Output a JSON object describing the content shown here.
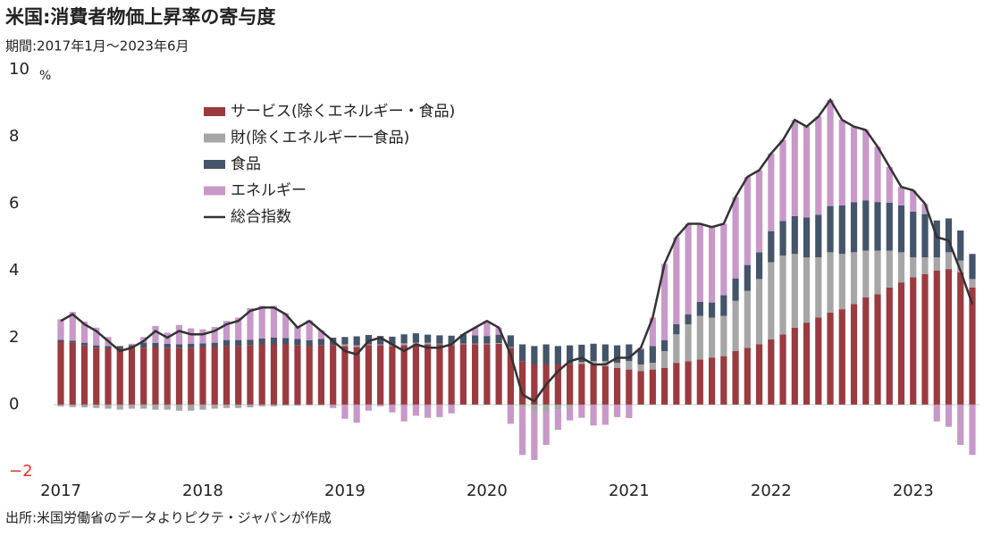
{
  "chart_data": {
    "type": "bar",
    "stacked": true,
    "title": "米国:消費者物価上昇率の寄与度",
    "subtitle": "期間:2017年1月～2023年6月",
    "source": "出所:米国労働省のデータよりピクテ・ジャパンが作成",
    "y_unit": "%",
    "categories": [
      "2017",
      null,
      null,
      null,
      null,
      null,
      null,
      null,
      null,
      null,
      null,
      null,
      "2018",
      null,
      null,
      null,
      null,
      null,
      null,
      null,
      null,
      null,
      null,
      null,
      "2019",
      null,
      null,
      null,
      null,
      null,
      null,
      null,
      null,
      null,
      null,
      null,
      "2020",
      null,
      null,
      null,
      null,
      null,
      null,
      null,
      null,
      null,
      null,
      null,
      "2021",
      null,
      null,
      null,
      null,
      null,
      null,
      null,
      null,
      null,
      null,
      null,
      "2022",
      null,
      null,
      null,
      null,
      null,
      null,
      null,
      null,
      null,
      null,
      null,
      "2023",
      null,
      null,
      null,
      null,
      null
    ],
    "ylim": [
      -2,
      10
    ],
    "yticks": [
      {
        "value": -2,
        "label": "−2"
      },
      0,
      2,
      4,
      6,
      8,
      10
    ],
    "negative_tick_color": "#e8302a",
    "series": [
      {
        "name": "サービス(除くエネルギー・食品)",
        "color": "#9b3a3f",
        "values": [
          1.88,
          1.85,
          1.78,
          1.7,
          1.68,
          1.68,
          1.7,
          1.7,
          1.72,
          1.7,
          1.7,
          1.7,
          1.72,
          1.72,
          1.75,
          1.75,
          1.78,
          1.8,
          1.8,
          1.8,
          1.78,
          1.76,
          1.78,
          1.78,
          1.75,
          1.72,
          1.78,
          1.78,
          1.75,
          1.78,
          1.8,
          1.8,
          1.8,
          1.78,
          1.8,
          1.8,
          1.8,
          1.82,
          1.7,
          1.3,
          1.2,
          1.2,
          1.2,
          1.22,
          1.22,
          1.2,
          1.15,
          1.1,
          1.05,
          1.0,
          1.05,
          1.1,
          1.25,
          1.3,
          1.35,
          1.4,
          1.45,
          1.6,
          1.7,
          1.8,
          1.95,
          2.1,
          2.3,
          2.45,
          2.6,
          2.75,
          2.85,
          3.0,
          3.2,
          3.3,
          3.5,
          3.65,
          3.8,
          3.9,
          4.0,
          4.05,
          3.95,
          3.5
        ]
      },
      {
        "name": "財(除くエネルギー一食品)",
        "color": "#a6a6a6",
        "values": [
          -0.05,
          -0.07,
          -0.08,
          -0.1,
          -0.12,
          -0.12,
          -0.12,
          -0.12,
          -0.15,
          -0.15,
          -0.18,
          -0.18,
          -0.15,
          -0.12,
          -0.1,
          -0.1,
          -0.08,
          -0.05,
          -0.05,
          -0.03,
          -0.03,
          -0.02,
          -0.02,
          0.0,
          0.05,
          0.05,
          0.02,
          0.02,
          0.02,
          0.05,
          0.05,
          0.05,
          0.02,
          0.02,
          0.02,
          0.02,
          0.02,
          0.02,
          0.02,
          -0.1,
          -0.2,
          -0.2,
          -0.15,
          -0.1,
          0.05,
          0.1,
          0.15,
          0.15,
          0.25,
          0.2,
          0.2,
          0.5,
          0.85,
          1.1,
          1.3,
          1.2,
          1.2,
          1.5,
          1.7,
          1.95,
          2.3,
          2.35,
          2.2,
          1.95,
          1.8,
          1.8,
          1.65,
          1.55,
          1.4,
          1.3,
          1.1,
          0.9,
          0.6,
          0.5,
          0.4,
          0.5,
          0.35,
          0.25
        ]
      },
      {
        "name": "食品",
        "color": "#44546a",
        "values": [
          0.06,
          0.06,
          0.07,
          0.07,
          0.07,
          0.07,
          0.08,
          0.15,
          0.12,
          0.12,
          0.1,
          0.12,
          0.11,
          0.13,
          0.18,
          0.18,
          0.16,
          0.18,
          0.2,
          0.19,
          0.18,
          0.16,
          0.18,
          0.22,
          0.22,
          0.27,
          0.28,
          0.25,
          0.26,
          0.27,
          0.28,
          0.24,
          0.25,
          0.26,
          0.28,
          0.25,
          0.23,
          0.25,
          0.35,
          0.5,
          0.55,
          0.6,
          0.55,
          0.55,
          0.52,
          0.52,
          0.5,
          0.52,
          0.5,
          0.45,
          0.5,
          0.32,
          0.3,
          0.3,
          0.42,
          0.45,
          0.62,
          0.67,
          0.77,
          0.8,
          0.93,
          1.03,
          1.13,
          1.19,
          1.27,
          1.38,
          1.45,
          1.49,
          1.5,
          1.45,
          1.43,
          1.4,
          1.36,
          1.29,
          1.1,
          1.01,
          0.9,
          0.75
        ]
      },
      {
        "name": "エネルギー",
        "color": "#c898c8",
        "values": [
          0.61,
          0.86,
          0.63,
          0.53,
          0.27,
          -0.03,
          0.04,
          0.17,
          0.51,
          0.33,
          0.58,
          0.46,
          0.42,
          0.47,
          0.57,
          0.67,
          0.94,
          0.97,
          0.95,
          0.74,
          0.37,
          0.6,
          0.26,
          -0.1,
          -0.42,
          -0.54,
          -0.18,
          -0.05,
          -0.23,
          -0.5,
          -0.33,
          -0.39,
          -0.37,
          -0.26,
          0.0,
          0.23,
          0.45,
          0.21,
          -0.57,
          -1.4,
          -1.45,
          -1.0,
          -0.6,
          -0.37,
          -0.39,
          -0.62,
          -0.6,
          -0.37,
          -0.4,
          0.05,
          0.85,
          2.28,
          2.6,
          2.7,
          2.33,
          2.25,
          2.13,
          2.43,
          2.63,
          2.45,
          2.32,
          2.42,
          2.87,
          2.71,
          2.93,
          3.17,
          2.55,
          2.26,
          2.1,
          1.65,
          1.07,
          0.55,
          0.64,
          0.31,
          -0.5,
          -0.66,
          -1.2,
          -1.5
        ]
      },
      {
        "name": "総合指数",
        "type": "line",
        "color": "#333333",
        "values": [
          2.5,
          2.7,
          2.4,
          2.2,
          1.9,
          1.6,
          1.7,
          1.9,
          2.2,
          2.0,
          2.2,
          2.1,
          2.1,
          2.2,
          2.4,
          2.5,
          2.8,
          2.9,
          2.9,
          2.7,
          2.3,
          2.5,
          2.2,
          1.9,
          1.6,
          1.5,
          1.9,
          2.0,
          1.8,
          1.6,
          1.8,
          1.7,
          1.7,
          1.8,
          2.1,
          2.3,
          2.5,
          2.3,
          1.5,
          0.3,
          0.1,
          0.6,
          1.0,
          1.3,
          1.4,
          1.2,
          1.2,
          1.4,
          1.4,
          1.7,
          2.6,
          4.2,
          5.0,
          5.4,
          5.4,
          5.3,
          5.4,
          6.2,
          6.8,
          7.0,
          7.5,
          7.9,
          8.5,
          8.3,
          8.6,
          9.1,
          8.5,
          8.3,
          8.2,
          7.7,
          7.1,
          6.5,
          6.4,
          6.0,
          5.0,
          4.9,
          4.0,
          3.0
        ]
      }
    ]
  }
}
